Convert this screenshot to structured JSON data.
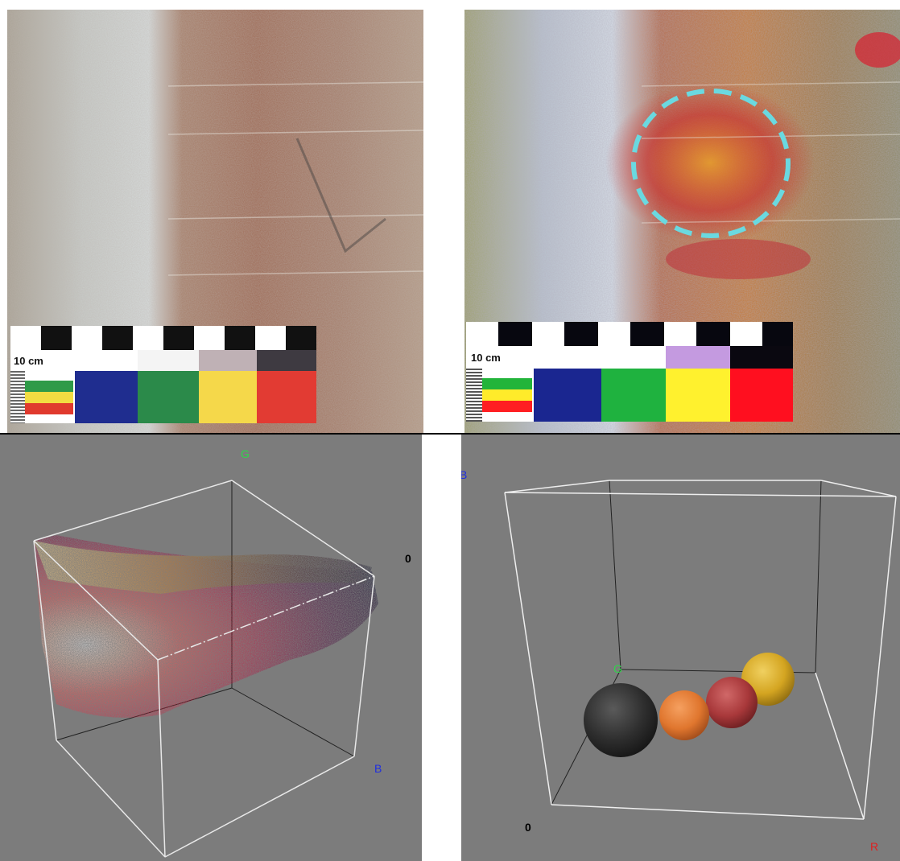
{
  "panels": {
    "photo_left": {
      "scale": {
        "label": "10 cm",
        "patches": [
          "#2b8a4a",
          "#f5d84a",
          "#e23b33",
          "#1f2d8f"
        ],
        "mini_stripes": [
          "#2f9a48",
          "#f2dc42",
          "#e03a2e"
        ]
      }
    },
    "photo_right": {
      "scale": {
        "label": "10 cm",
        "patches": [
          "#1fb23f",
          "#fff12e",
          "#ff0f1f",
          "#1a2690"
        ],
        "mini_stripes": [
          "#22b43a",
          "#ffeb2a",
          "#ff1e22"
        ]
      },
      "highlight_color": "#6ad9e0"
    },
    "cube_left": {
      "axes": {
        "g": "G",
        "zero": "0",
        "b": "B"
      }
    },
    "cube_right": {
      "axes": {
        "b": "B",
        "g": "G",
        "zero": "0",
        "r": "R"
      },
      "spheres": [
        {
          "name": "black",
          "color": "#2e2e2e"
        },
        {
          "name": "orange",
          "color": "#e0762e"
        },
        {
          "name": "dark-red",
          "color": "#a8383a"
        },
        {
          "name": "yellow",
          "color": "#d4a521"
        }
      ]
    }
  }
}
